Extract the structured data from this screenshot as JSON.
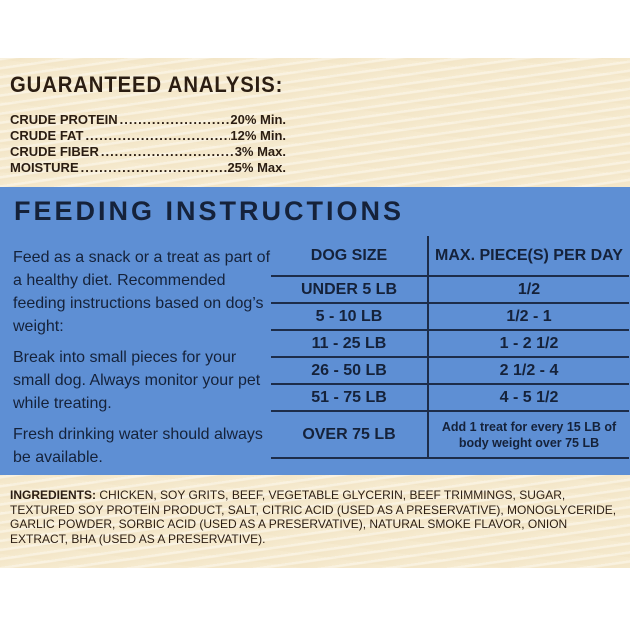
{
  "guaranteed_analysis": {
    "title": "GUARANTEED ANALYSIS:",
    "rows": [
      {
        "name": "CRUDE PROTEIN",
        "value": "20% Min."
      },
      {
        "name": "CRUDE FAT",
        "value": "12% Min."
      },
      {
        "name": "CRUDE FIBER",
        "value": "3% Max."
      },
      {
        "name": "MOISTURE",
        "value": "25% Max."
      }
    ]
  },
  "feeding": {
    "title": "FEEDING INSTRUCTIONS",
    "paragraphs": [
      "Feed as a snack or a treat as part of a healthy diet. Recommended feeding instructions based on dog’s weight:",
      "Break into small pieces for your small dog. Always monitor your pet while treating.",
      "Fresh drinking water should always be available."
    ],
    "table": {
      "headers": [
        "DOG SIZE",
        "MAX. PIECE(S) PER DAY"
      ],
      "rows": [
        [
          "UNDER 5 LB",
          "1/2"
        ],
        [
          "5 - 10 LB",
          "1/2 - 1"
        ],
        [
          "11 - 25 LB",
          "1 - 2 1/2"
        ],
        [
          "26 - 50 LB",
          "2 1/2 - 4"
        ],
        [
          "51 - 75 LB",
          "4 - 5 1/2"
        ],
        [
          "OVER 75 LB",
          "Add 1 treat for every 15 LB of body weight over 75 LB"
        ]
      ]
    }
  },
  "ingredients": {
    "label": "INGREDIENTS:",
    "text": "CHICKEN, SOY GRITS, BEEF, VEGETABLE GLYCERIN, BEEF TRIMMINGS, SUGAR, TEXTURED SOY PROTEIN PRODUCT, SALT, CITRIC ACID (USED AS A PRESERVATIVE), MONOGLYCERIDE, GARLIC POWDER, SORBIC ACID (USED AS A PRESERVATIVE), NATURAL SMOKE FLAVOR, ONION EXTRACT, BHA (USED AS A PRESERVATIVE)."
  },
  "colors": {
    "cream_background": "#f7ecd2",
    "blue_panel": "#5e8fd4",
    "dark_text": "#15223a",
    "brown_text": "#2b1d12"
  }
}
